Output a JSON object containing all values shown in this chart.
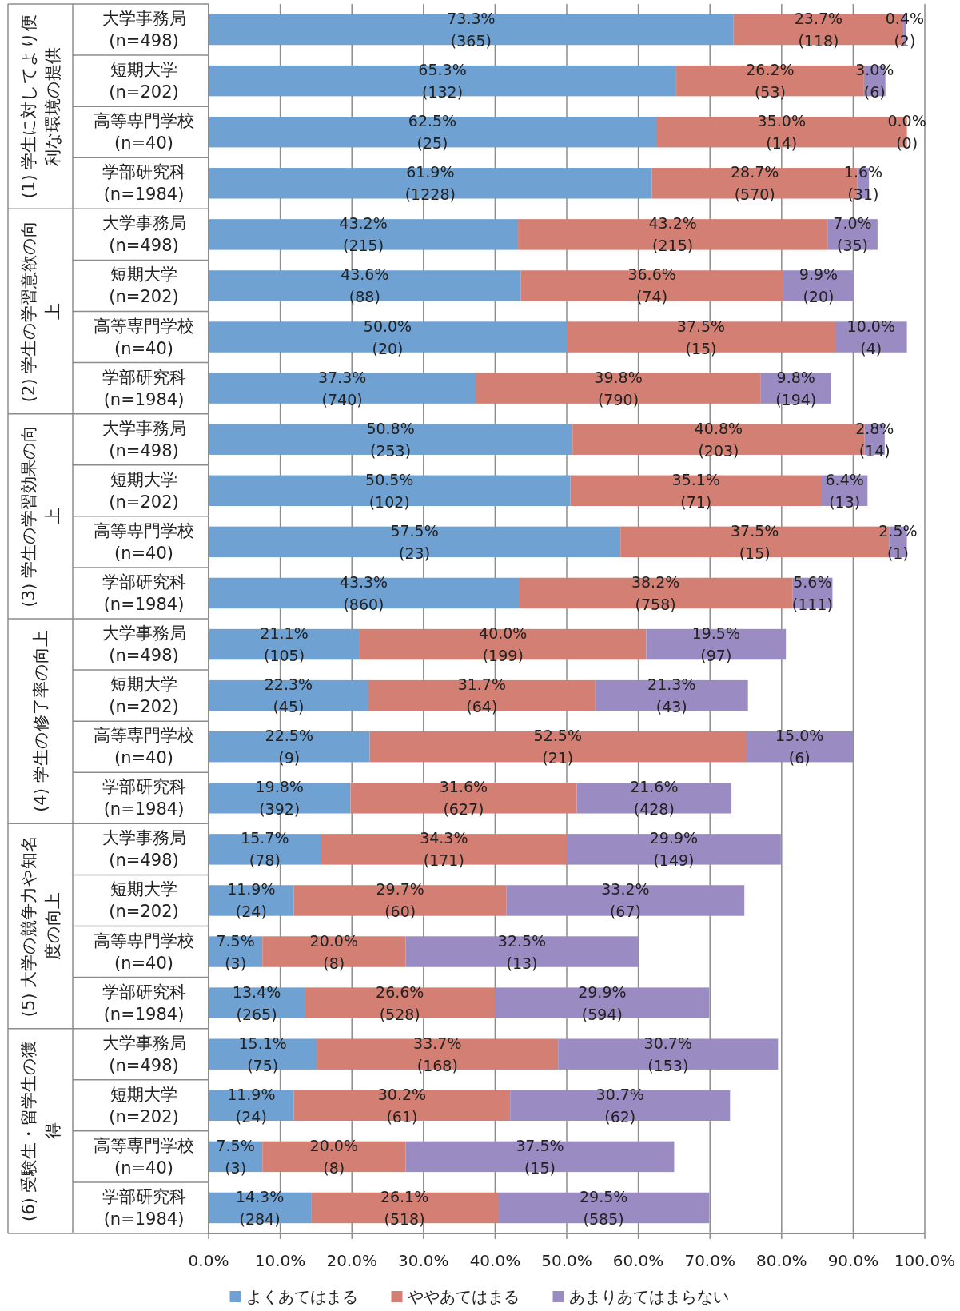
{
  "chart_data": {
    "type": "bar",
    "orientation": "horizontal",
    "stacked": true,
    "grid": "x",
    "legend": "bottom",
    "categories": [
      "大学事務局\n(n=498)",
      "短期大学\n(n=202)",
      "高等専門学校\n(n=40)",
      "学部研究科\n(n=1984)",
      "大学事務局\n(n=498)",
      "短期大学\n(n=202)",
      "高等専門学校\n(n=40)",
      "学部研究科\n(n=1984)",
      "大学事務局\n(n=498)",
      "短期大学\n(n=202)",
      "高等専門学校\n(n=40)",
      "学部研究科\n(n=1984)",
      "大学事務局\n(n=498)",
      "短期大学\n(n=202)",
      "高等専門学校\n(n=40)",
      "学部研究科\n(n=1984)",
      "大学事務局\n(n=498)",
      "短期大学\n(n=202)",
      "高等専門学校\n(n=40)",
      "学部研究科\n(n=1984)",
      "大学事務局\n(n=498)",
      "短期大学\n(n=202)",
      "高等専門学校\n(n=40)",
      "学部研究科\n(n=1984)"
    ],
    "annotations": [
      "(1) 学生に対してより便利な環境の提供",
      "(2) 学生の学習意欲の向上",
      "(3) 学生の学習効果の向上",
      "(4) 学生の修了率の向上",
      "(5) 大学の競争力や知名度の向上",
      "(6) 受験生・留学生の獲得"
    ],
    "series": [
      {
        "name": "よくあてはまる",
        "color": "#6fa2d3",
        "values": [
          73.3,
          65.3,
          62.5,
          61.9,
          43.2,
          43.6,
          50.0,
          37.3,
          50.8,
          50.5,
          57.5,
          43.3,
          21.1,
          22.3,
          22.5,
          19.8,
          15.7,
          11.9,
          7.5,
          13.4,
          15.1,
          11.9,
          7.5,
          14.3
        ],
        "value_labels": [
          "73.3%\n(365)",
          "65.3%\n(132)",
          "62.5%\n(25)",
          "61.9%\n(1228)",
          "43.2%\n(215)",
          "43.6%\n(88)",
          "50.0%\n(20)",
          "37.3%\n(740)",
          "50.8%\n(253)",
          "50.5%\n(102)",
          "57.5%\n(23)",
          "43.3%\n(860)",
          "21.1%\n(105)",
          "22.3%\n(45)",
          "22.5%\n(9)",
          "19.8%\n(392)",
          "15.7%\n(78)",
          "11.9%\n(24)",
          "7.5%\n(3)",
          "13.4%\n(265)",
          "15.1%\n(75)",
          "11.9%\n(24)",
          "7.5%\n(3)",
          "14.3%\n(284)"
        ]
      },
      {
        "name": "ややあてはまる",
        "color": "#d37f73",
        "values": [
          23.7,
          26.2,
          35.0,
          28.7,
          43.2,
          36.6,
          37.5,
          39.8,
          40.8,
          35.1,
          37.5,
          38.2,
          40.0,
          31.7,
          52.5,
          31.6,
          34.3,
          29.7,
          20.0,
          26.6,
          33.7,
          30.2,
          20.0,
          26.1
        ],
        "value_labels": [
          "23.7%\n(118)",
          "26.2%\n(53)",
          "35.0%\n(14)",
          "28.7%\n(570)",
          "43.2%\n(215)",
          "36.6%\n(74)",
          "37.5%\n(15)",
          "39.8%\n(790)",
          "40.8%\n(203)",
          "35.1%\n(71)",
          "37.5%\n(15)",
          "38.2%\n(758)",
          "40.0%\n(199)",
          "31.7%\n(64)",
          "52.5%\n(21)",
          "31.6%\n(627)",
          "34.3%\n(171)",
          "29.7%\n(60)",
          "20.0%\n(8)",
          "26.6%\n(528)",
          "33.7%\n(168)",
          "30.2%\n(61)",
          "20.0%\n(8)",
          "26.1%\n(518)"
        ]
      },
      {
        "name": "あまりあてはまらない",
        "color": "#9a8cc3",
        "values": [
          0.4,
          3.0,
          0.0,
          1.6,
          7.0,
          9.9,
          10.0,
          9.8,
          2.8,
          6.4,
          2.5,
          5.6,
          19.5,
          21.3,
          15.0,
          21.6,
          29.9,
          33.2,
          32.5,
          29.9,
          30.7,
          30.7,
          37.5,
          29.5
        ],
        "value_labels": [
          "0.4%\n(2)",
          "3.0%\n(6)",
          "0.0%\n(0)",
          "1.6%\n(31)",
          "7.0%\n(35)",
          "9.9%\n(20)",
          "10.0%\n(4)",
          "9.8%\n(194)",
          "2.8%\n(14)",
          "6.4%\n(13)",
          "2.5%\n(1)",
          "5.6%\n(111)",
          "19.5%\n(97)",
          "21.3%\n(43)",
          "15.0%\n(6)",
          "21.6%\n(428)",
          "29.9%\n(149)",
          "33.2%\n(67)",
          "32.5%\n(13)",
          "29.9%\n(594)",
          "30.7%\n(153)",
          "30.7%\n(62)",
          "37.5%\n(15)",
          "29.5%\n(585)"
        ]
      }
    ],
    "xlim": [
      0,
      100
    ],
    "xticks": [
      {
        "value": 0,
        "label": "0.0%"
      },
      {
        "value": 10,
        "label": "10.0%"
      },
      {
        "value": 20,
        "label": "20.0%"
      },
      {
        "value": 30,
        "label": "30.0%"
      },
      {
        "value": 40,
        "label": "40.0%"
      },
      {
        "value": 50,
        "label": "50.0%"
      },
      {
        "value": 60,
        "label": "60.0%"
      },
      {
        "value": 70,
        "label": "70.0%"
      },
      {
        "value": 80,
        "label": "80.0%"
      },
      {
        "value": 90,
        "label": "90.0%"
      },
      {
        "value": 100,
        "label": "100.0%"
      }
    ]
  }
}
